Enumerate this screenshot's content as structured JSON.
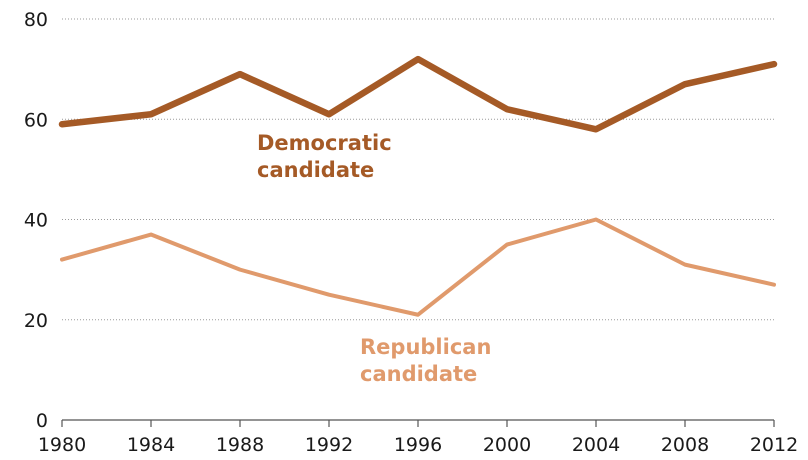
{
  "chart_data": {
    "type": "line",
    "x": [
      1980,
      1984,
      1988,
      1992,
      1996,
      2000,
      2004,
      2008,
      2012
    ],
    "x_tick_labels": [
      "1980",
      "1984",
      "1988",
      "1992",
      "1996",
      "2000",
      "2004",
      "2008",
      "2012"
    ],
    "y_tick_labels": [
      "0",
      "20",
      "40",
      "60",
      "80"
    ],
    "y_ticks": [
      0,
      20,
      40,
      60,
      80
    ],
    "ylim": [
      0,
      80
    ],
    "grid": true,
    "series": [
      {
        "name": "Democratic candidate",
        "label_lines": [
          "Democratic",
          "candidate"
        ],
        "color": "#a55a26",
        "values": [
          59,
          61,
          69,
          61,
          72,
          62,
          58,
          67,
          71
        ]
      },
      {
        "name": "Republican candidate",
        "label_lines": [
          "Republican",
          "candidate"
        ],
        "color": "#e09a6c",
        "values": [
          32,
          37,
          30,
          25,
          21,
          35,
          40,
          31,
          27
        ]
      }
    ]
  }
}
